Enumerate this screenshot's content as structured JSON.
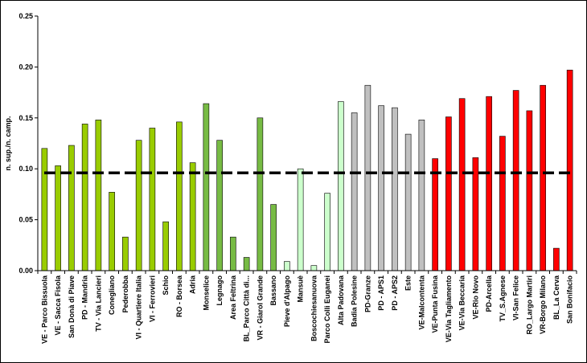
{
  "chart_data": {
    "type": "bar",
    "title": "",
    "xlabel": "",
    "ylabel": "n. sup./n. camp.",
    "ylim": [
      0,
      0.25
    ],
    "yticks": [
      "0.00",
      "0.05",
      "0.10",
      "0.15",
      "0.20",
      "0.25"
    ],
    "grid": false,
    "legend": "none",
    "reference_line": {
      "value": 0.096,
      "style": "dashed",
      "color": "#000000"
    },
    "categories": [
      "VE - Parco Bissuola",
      "VE - Sacca Fisola",
      "San Donà di Piave",
      "PD - Mandria",
      "TV - Via Lancieri",
      "Conegliano",
      "Pederobba",
      "VI - Quartiere Italia",
      "VI - Ferrovieri",
      "Schio",
      "RO - Borsea",
      "Adria",
      "Monselice",
      "Legnago",
      "Area Feltrina",
      "BL_Parco Città di...",
      "VR - Giarol Grande",
      "Bassano",
      "Pieve d'Alpago",
      "Mansuè",
      "Boscochiesanuova",
      "Parco Colli Euganei",
      "Alta Padovana",
      "Badia Polesine",
      "PD-Granze",
      "PD - APS1",
      "PD - APS2",
      "Este",
      "VE-Malcontenta",
      "VE-Punta Fusina",
      "VE-Via Tagliamento",
      "VE-Via Beccaria",
      "VE-Rio Novo",
      "PD-Arcella",
      "TV_S.Agnese",
      "VI-San Felice",
      "RO_Largo Martiri",
      "VR-Borgo Milano",
      "BL_La Cerva",
      "San Bonifacio"
    ],
    "values": [
      0.12,
      0.103,
      0.123,
      0.144,
      0.148,
      0.077,
      0.033,
      0.128,
      0.14,
      0.048,
      0.146,
      0.106,
      0.164,
      0.128,
      0.033,
      0.013,
      0.15,
      0.065,
      0.009,
      0.1,
      0.005,
      0.076,
      0.166,
      0.155,
      0.182,
      0.162,
      0.16,
      0.134,
      0.148,
      0.11,
      0.151,
      0.169,
      0.111,
      0.171,
      0.132,
      0.177,
      0.157,
      0.182,
      0.022,
      0.197
    ],
    "colors": [
      "#99cc00",
      "#99cc00",
      "#99cc00",
      "#99cc00",
      "#99cc00",
      "#99cc00",
      "#99cc00",
      "#99cc00",
      "#99cc00",
      "#99cc00",
      "#99cc00",
      "#99cc00",
      "#77bb44",
      "#77bb44",
      "#77bb44",
      "#77bb44",
      "#77bb44",
      "#77bb44",
      "#ccffcc",
      "#ccffcc",
      "#ccffcc",
      "#ccffcc",
      "#ccffcc",
      "#c0c0c0",
      "#c0c0c0",
      "#c0c0c0",
      "#c0c0c0",
      "#c0c0c0",
      "#c0c0c0",
      "#ff0000",
      "#ff0000",
      "#ff0000",
      "#ff0000",
      "#ff0000",
      "#ff0000",
      "#ff0000",
      "#ff0000",
      "#ff0000",
      "#ff0000",
      "#ff0000"
    ]
  }
}
